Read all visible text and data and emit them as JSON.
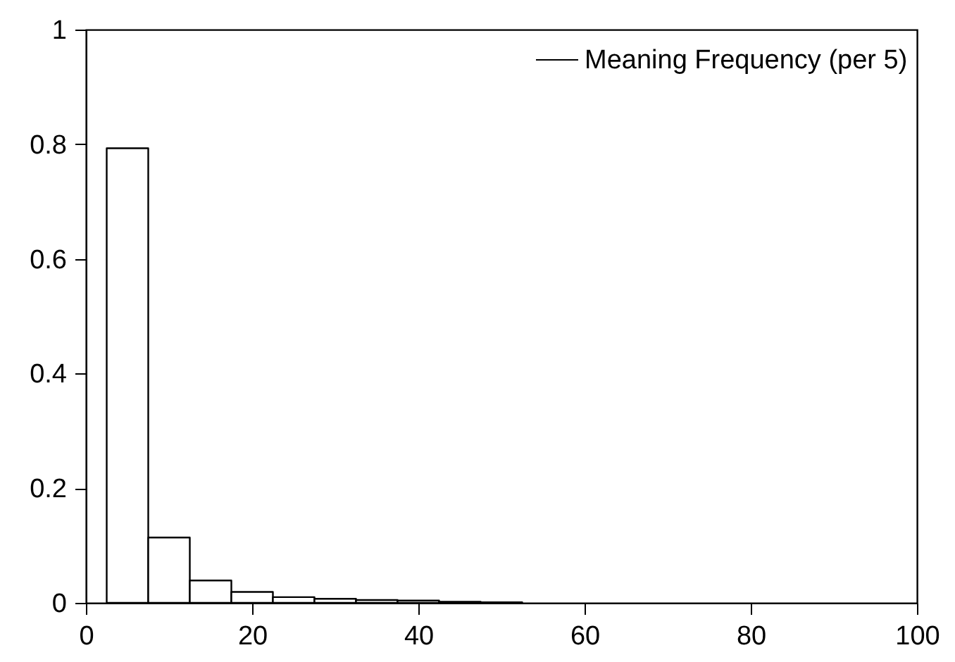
{
  "chart_data": {
    "type": "histogram",
    "bins": [
      2.5,
      7.5,
      12.5,
      17.5,
      22.5,
      27.5,
      32.5,
      37.5,
      42.5,
      47.5,
      52.5
    ],
    "series": [
      {
        "name": "Meaning Frequency (per 5)",
        "color": "#000000",
        "values": [
          0.793,
          0.114,
          0.039,
          0.019,
          0.01,
          0.007,
          0.005,
          0.004,
          0.002,
          0.001
        ]
      }
    ],
    "xlim": [
      0,
      100
    ],
    "xticks": [
      0,
      20,
      40,
      60,
      80,
      100
    ],
    "ylim": [
      0,
      1
    ],
    "yticks": [
      0,
      0.2,
      0.4,
      0.6,
      0.8,
      1
    ],
    "grid": false,
    "legend": "top right"
  }
}
